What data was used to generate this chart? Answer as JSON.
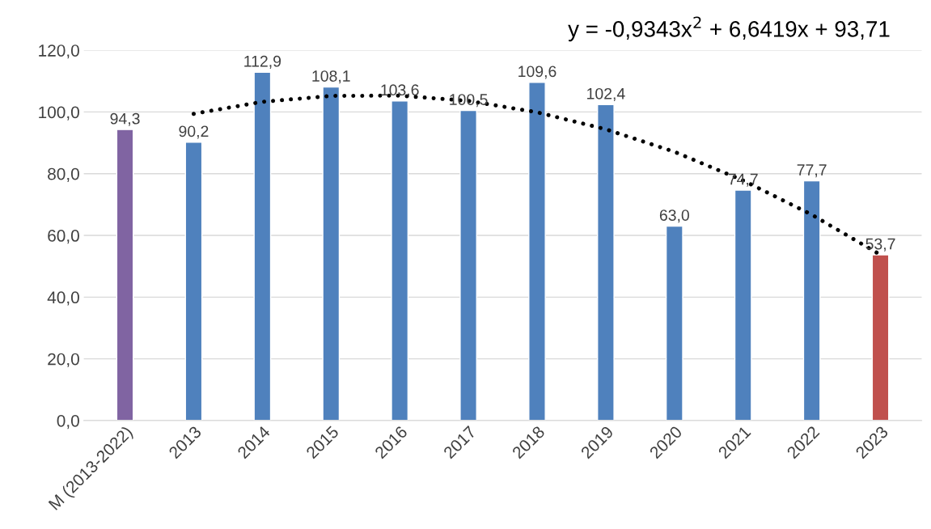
{
  "chart_data": {
    "type": "bar",
    "categories": [
      "M (2013-2022)",
      "2013",
      "2014",
      "2015",
      "2016",
      "2017",
      "2018",
      "2019",
      "2020",
      "2021",
      "2022",
      "2023"
    ],
    "series": [
      {
        "values": [
          94.3,
          90.2,
          112.9,
          108.1,
          103.6,
          100.5,
          109.6,
          102.4,
          63.0,
          74.7,
          77.7,
          53.7
        ],
        "value_labels": [
          "94,3",
          "90,2",
          "112,9",
          "108,1",
          "103,6",
          "100,5",
          "109,6",
          "102,4",
          "63,0",
          "74,7",
          "77,7",
          "53,7"
        ],
        "colors": [
          "#8064a2",
          "#4f81bd",
          "#4f81bd",
          "#4f81bd",
          "#4f81bd",
          "#4f81bd",
          "#4f81bd",
          "#4f81bd",
          "#4f81bd",
          "#4f81bd",
          "#4f81bd",
          "#c0504d"
        ]
      },
      {
        "type": "line",
        "line_style": "dotted",
        "color": "#000000",
        "values": [
          null,
          99.4,
          103.3,
          105.2,
          105.3,
          103.6,
          99.9,
          94.4,
          87.1,
          77.8,
          66.7,
          53.7
        ]
      }
    ],
    "ylim": [
      0,
      120
    ],
    "yticks": [
      {
        "value": 0,
        "label": "0,0"
      },
      {
        "value": 20,
        "label": "20,0"
      },
      {
        "value": 40,
        "label": "40,0"
      },
      {
        "value": 60,
        "label": "60,0"
      },
      {
        "value": 80,
        "label": "80,0"
      },
      {
        "value": 100,
        "label": "100,0"
      },
      {
        "value": 120,
        "label": "120,0"
      }
    ],
    "grid": "y",
    "annotations": [
      "y = -0,9343x$^{2}$ + 6,6419x + 93,71"
    ]
  }
}
